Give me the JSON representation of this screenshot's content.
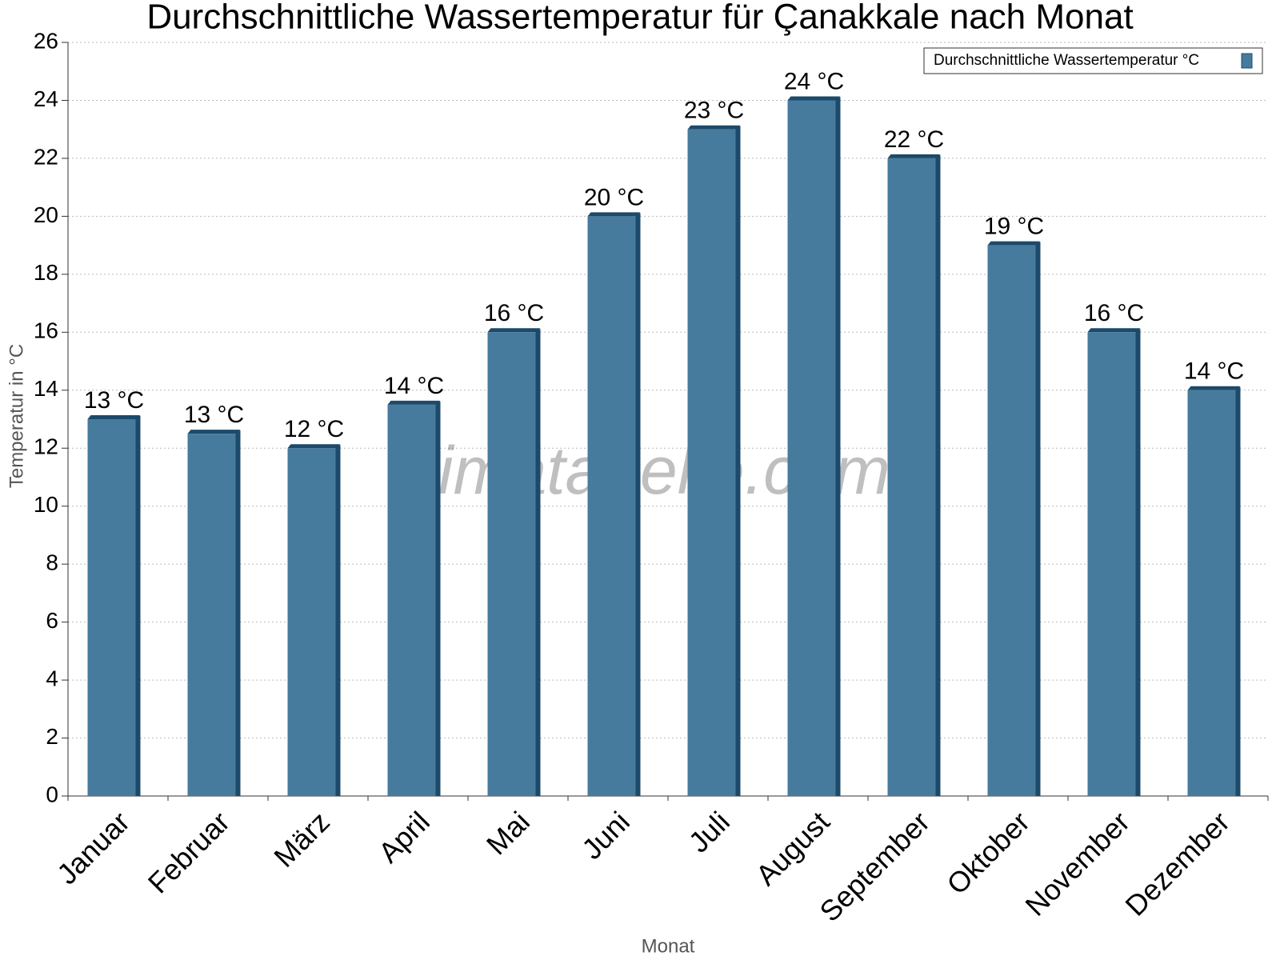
{
  "chart_data": {
    "type": "bar",
    "title": "Durchschnittliche Wassertemperatur für Çanakkale nach Monat",
    "x_label": "Monat",
    "y_label": "Temperatur in °C",
    "watermark": "klimatabelle.com",
    "categories": [
      "Januar",
      "Februar",
      "März",
      "April",
      "Mai",
      "Juni",
      "Juli",
      "August",
      "September",
      "Oktober",
      "November",
      "Dezember"
    ],
    "series": [
      {
        "name": "Durchschnittliche Wassertemperatur °C",
        "color": "#477b9e",
        "values": [
          13,
          12.5,
          12,
          13.5,
          16,
          20,
          23,
          24,
          22,
          19,
          16,
          14
        ],
        "value_labels": [
          "13 °C",
          "13 °C",
          "12 °C",
          "14 °C",
          "16 °C",
          "20 °C",
          "23 °C",
          "24 °C",
          "22 °C",
          "19 °C",
          "16 °C",
          "14 °C"
        ]
      }
    ],
    "ylim": [
      0,
      26
    ],
    "yticks": [
      0,
      2,
      4,
      6,
      8,
      10,
      12,
      14,
      16,
      18,
      20,
      22,
      24,
      26
    ],
    "grid": true,
    "legend": "top-right"
  }
}
